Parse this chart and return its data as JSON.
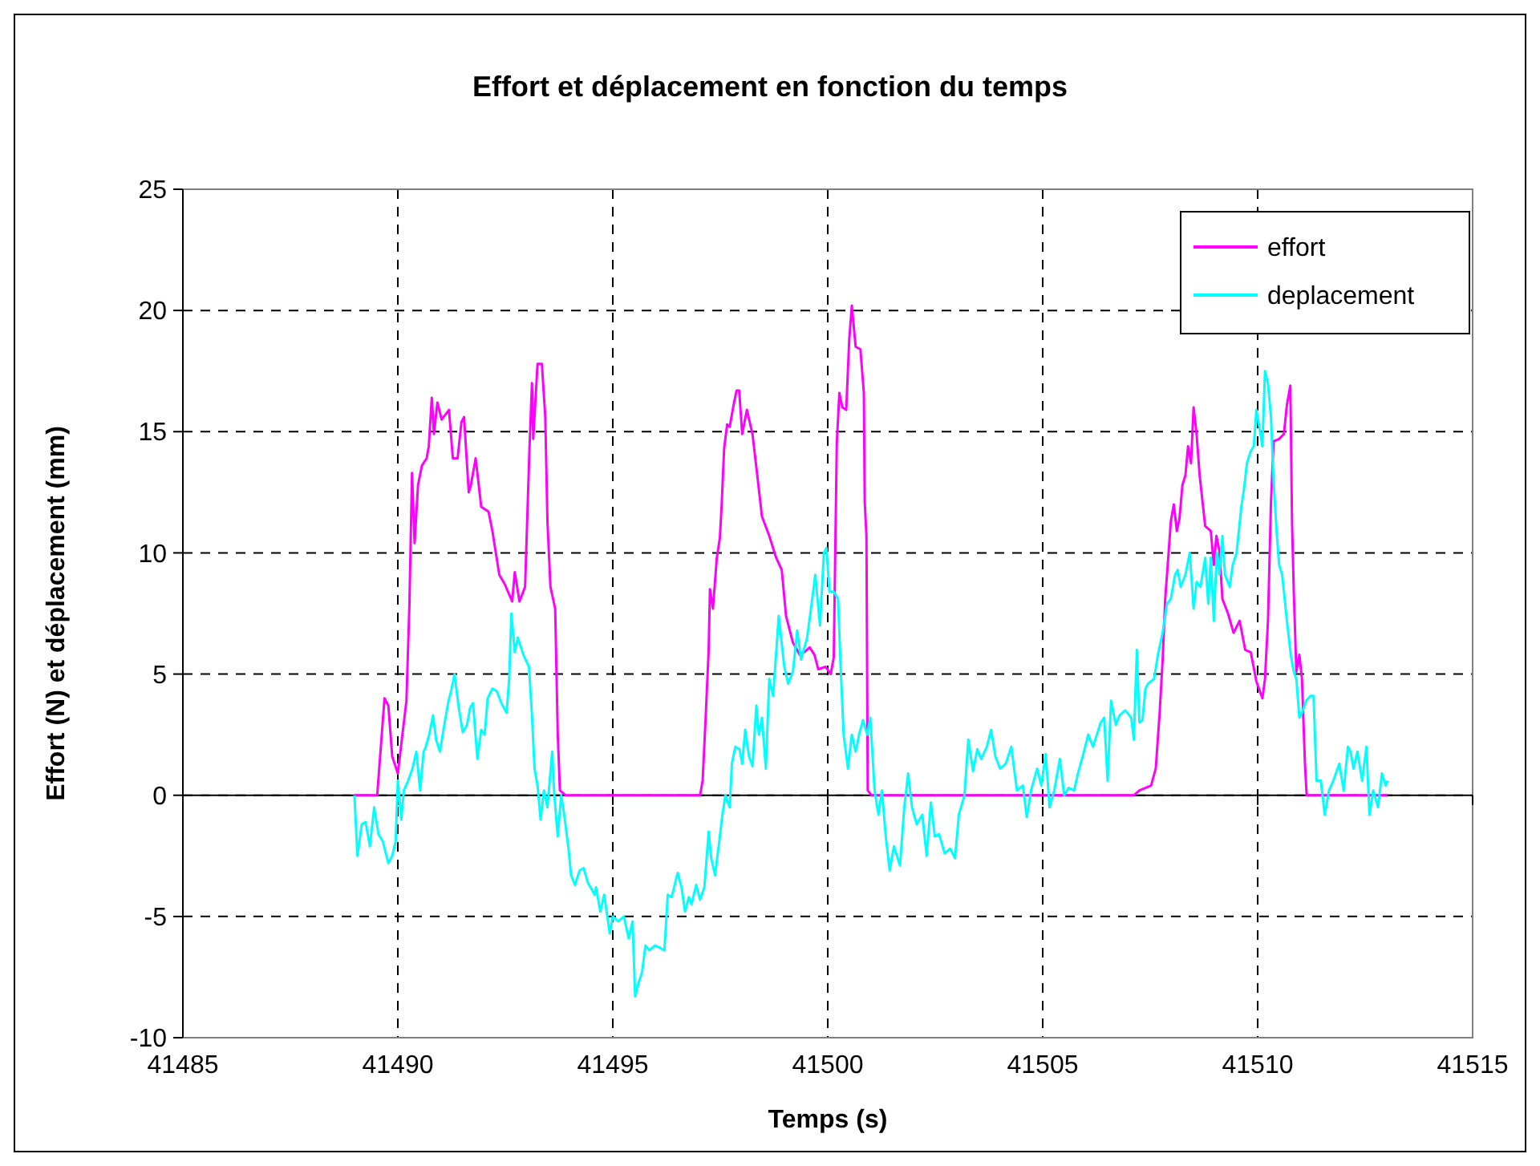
{
  "chart_data": {
    "type": "line",
    "title": "Effort et déplacement en fonction du temps",
    "xlabel": "Temps (s)",
    "ylabel": "Effort (N) et déplacement (mm)",
    "xlim": [
      41485,
      41515
    ],
    "xticks": [
      41485,
      41490,
      41495,
      41500,
      41505,
      41510,
      41515
    ],
    "ylim": [
      -10,
      25
    ],
    "yticks": [
      -10,
      -5,
      0,
      5,
      10,
      15,
      20,
      25
    ],
    "grid": true,
    "legend": "top right",
    "marker": "none",
    "line_style": "solid",
    "series": [
      {
        "name": "effort",
        "color": "#ff00ff",
        "x": [
          41488.99,
          41489.52,
          41489.69,
          41489.78,
          41489.87,
          41490.0,
          41490.2,
          41490.27,
          41490.33,
          41490.39,
          41490.47,
          41490.56,
          41490.67,
          41490.72,
          41490.79,
          41490.84,
          41490.92,
          41491.02,
          41491.19,
          41491.28,
          41491.39,
          41491.48,
          41491.54,
          41491.65,
          41491.7,
          41491.81,
          41491.94,
          41492.11,
          41492.2,
          41492.36,
          41492.49,
          41492.66,
          41492.72,
          41492.83,
          41492.96,
          41493.06,
          41493.12,
          41493.15,
          41493.25,
          41493.35,
          41493.43,
          41493.48,
          41493.55,
          41493.66,
          41493.72,
          41493.77,
          41493.9,
          41497.03,
          41497.09,
          41497.16,
          41497.23,
          41497.26,
          41497.33,
          41497.42,
          41497.49,
          41497.53,
          41497.59,
          41497.66,
          41497.72,
          41497.81,
          41497.88,
          41497.94,
          41498.01,
          41498.12,
          41498.25,
          41498.38,
          41498.47,
          41498.64,
          41498.8,
          41498.93,
          41499.03,
          41499.19,
          41499.35,
          41499.45,
          41499.58,
          41499.69,
          41499.78,
          41499.95,
          41500.07,
          41500.14,
          41500.21,
          41500.27,
          41500.34,
          41500.43,
          41500.5,
          41500.56,
          41500.65,
          41500.76,
          41500.84,
          41500.86,
          41500.9,
          41500.93,
          41501.02,
          41507.12,
          41507.25,
          41507.52,
          41507.63,
          41507.72,
          41507.79,
          41507.85,
          41507.92,
          41507.98,
          41508.05,
          41508.12,
          41508.18,
          41508.25,
          41508.32,
          41508.38,
          41508.45,
          41508.51,
          41508.58,
          41508.65,
          41508.78,
          41508.91,
          41508.98,
          41509.04,
          41509.11,
          41509.18,
          41509.31,
          41509.44,
          41509.58,
          41509.71,
          41509.84,
          41509.97,
          41510.11,
          41510.17,
          41510.24,
          41510.31,
          41510.37,
          41510.5,
          41510.61,
          41510.68,
          41510.76,
          41510.8,
          41510.84,
          41510.9,
          41510.97,
          41511.03,
          41511.1,
          41511.14,
          41513.02
        ],
        "values": [
          0,
          0,
          4.0,
          3.7,
          1.6,
          0.9,
          3.9,
          7.9,
          13.3,
          10.4,
          12.8,
          13.6,
          13.9,
          14.4,
          16.4,
          14.9,
          16.2,
          15.5,
          15.9,
          13.9,
          13.9,
          15.4,
          15.6,
          12.5,
          12.8,
          13.9,
          11.9,
          11.7,
          10.9,
          9.1,
          8.7,
          8.0,
          9.2,
          8.0,
          8.6,
          14.2,
          17.0,
          14.7,
          17.8,
          17.8,
          15.6,
          11.3,
          8.6,
          7.7,
          2.5,
          0.2,
          0,
          0,
          0.6,
          3.2,
          6.0,
          8.5,
          7.7,
          9.8,
          10.6,
          11.9,
          14.3,
          15.3,
          15.2,
          16.1,
          16.7,
          16.7,
          14.9,
          15.9,
          14.9,
          12.9,
          11.5,
          10.7,
          9.8,
          9.3,
          7.4,
          6.3,
          5.8,
          5.9,
          6.1,
          5.8,
          5.2,
          5.3,
          5.0,
          5.7,
          14.5,
          16.6,
          16.0,
          15.9,
          18.8,
          20.2,
          18.5,
          18.4,
          16.6,
          12.1,
          10.7,
          0.2,
          0,
          0,
          0.2,
          0.4,
          1.1,
          3.4,
          5.6,
          8.1,
          9.8,
          11.3,
          12.0,
          10.9,
          11.4,
          12.8,
          13.2,
          14.4,
          13.7,
          16.0,
          14.9,
          13.2,
          11.1,
          10.9,
          9.5,
          10.7,
          10.1,
          8.1,
          7.5,
          6.7,
          7.2,
          6.0,
          5.9,
          4.7,
          4.0,
          4.8,
          7.2,
          12.1,
          14.6,
          14.7,
          14.9,
          16.1,
          16.9,
          11.2,
          8.4,
          5.1,
          5.8,
          4.8,
          1.3,
          0,
          0
        ]
      },
      {
        "name": "deplacement",
        "color": "#00ffff",
        "x": [
          41488.99,
          41489.06,
          41489.16,
          41489.25,
          41489.35,
          41489.45,
          41489.55,
          41489.65,
          41489.78,
          41489.87,
          41489.95,
          41490.0,
          41490.08,
          41490.14,
          41490.24,
          41490.34,
          41490.43,
          41490.52,
          41490.6,
          41490.65,
          41490.73,
          41490.82,
          41490.89,
          41490.98,
          41491.09,
          41491.18,
          41491.24,
          41491.32,
          41491.41,
          41491.51,
          41491.61,
          41491.68,
          41491.75,
          41491.85,
          41491.94,
          41492.02,
          41492.09,
          41492.2,
          41492.3,
          41492.41,
          41492.53,
          41492.59,
          41492.64,
          41492.72,
          41492.79,
          41492.92,
          41493.05,
          41493.12,
          41493.18,
          41493.25,
          41493.32,
          41493.4,
          41493.48,
          41493.59,
          41493.64,
          41493.72,
          41493.8,
          41493.87,
          41493.97,
          41494.03,
          41494.12,
          41494.23,
          41494.32,
          41494.42,
          41494.58,
          41494.61,
          41494.71,
          41494.8,
          41494.93,
          41495.0,
          41495.13,
          41495.26,
          41495.37,
          41495.46,
          41495.52,
          41495.59,
          41495.68,
          41495.76,
          41495.85,
          41495.98,
          41496.11,
          41496.2,
          41496.28,
          41496.37,
          41496.51,
          41496.6,
          41496.68,
          41496.77,
          41496.83,
          41496.94,
          41497.03,
          41497.13,
          41497.23,
          41497.29,
          41497.38,
          41497.49,
          41497.55,
          41497.62,
          41497.72,
          41497.77,
          41497.85,
          41497.95,
          41498.01,
          41498.08,
          41498.17,
          41498.25,
          41498.34,
          41498.4,
          41498.47,
          41498.56,
          41498.64,
          41498.73,
          41498.86,
          41498.99,
          41499.08,
          41499.19,
          41499.29,
          41499.38,
          41499.52,
          41499.61,
          41499.71,
          41499.82,
          41499.91,
          41499.97,
          41500.04,
          41500.14,
          41500.24,
          41500.3,
          41500.37,
          41500.47,
          41500.56,
          41500.65,
          41500.73,
          41500.82,
          41500.92,
          41500.99,
          41501.09,
          41501.18,
          41501.26,
          41501.35,
          41501.44,
          41501.54,
          41501.68,
          41501.78,
          41501.87,
          41501.96,
          41502.07,
          41502.2,
          41502.3,
          41502.4,
          41502.49,
          41502.59,
          41502.72,
          41502.85,
          41502.96,
          41503.05,
          41503.18,
          41503.27,
          41503.38,
          41503.48,
          41503.57,
          41503.7,
          41503.8,
          41503.9,
          41504.01,
          41504.14,
          41504.27,
          41504.4,
          41504.54,
          41504.63,
          41504.73,
          41504.87,
          41504.97,
          41505.07,
          41505.16,
          41505.27,
          41505.4,
          41505.5,
          41505.6,
          41505.73,
          41505.82,
          41505.93,
          41506.06,
          41506.17,
          41506.26,
          41506.35,
          41506.43,
          41506.51,
          41506.59,
          41506.7,
          41506.79,
          41506.92,
          41507.06,
          41507.12,
          41507.19,
          41507.25,
          41507.32,
          41507.39,
          41507.45,
          41507.59,
          41507.68,
          41507.79,
          41507.89,
          41507.98,
          41508.08,
          41508.14,
          41508.21,
          41508.32,
          41508.42,
          41508.51,
          41508.58,
          41508.67,
          41508.78,
          41508.85,
          41508.91,
          41508.98,
          41509.05,
          41509.11,
          41509.18,
          41509.24,
          41509.35,
          41509.42,
          41509.51,
          41509.62,
          41509.68,
          41509.75,
          41509.84,
          41509.91,
          41509.97,
          41510.04,
          41510.11,
          41510.17,
          41510.24,
          41510.31,
          41510.37,
          41510.44,
          41510.5,
          41510.57,
          41510.68,
          41510.77,
          41510.84,
          41510.9,
          41510.97,
          41511.03,
          41511.13,
          41511.23,
          41511.3,
          41511.37,
          41511.47,
          41511.56,
          41511.66,
          41511.76,
          41511.9,
          41512.0,
          41512.1,
          41512.16,
          41512.23,
          41512.32,
          41512.43,
          41512.53,
          41512.6,
          41512.69,
          41512.8,
          41512.89,
          41512.98,
          41513.02
        ],
        "values": [
          0,
          -2.5,
          -1.2,
          -1.1,
          -2.1,
          -0.5,
          -1.6,
          -1.9,
          -2.8,
          -2.5,
          -1.9,
          0.6,
          -1.0,
          0.2,
          0.6,
          1.1,
          1.8,
          0.2,
          1.8,
          2.0,
          2.5,
          3.3,
          2.3,
          1.8,
          3.0,
          3.9,
          4.3,
          5.0,
          3.7,
          2.6,
          2.9,
          3.6,
          3.8,
          1.5,
          2.7,
          2.5,
          4.0,
          4.4,
          4.3,
          3.8,
          3.4,
          4.8,
          7.5,
          5.9,
          6.5,
          5.8,
          5.3,
          3.3,
          1.1,
          0.4,
          -1.0,
          0.2,
          -0.5,
          1.8,
          0,
          -1.7,
          0,
          -0.8,
          -2.2,
          -3.3,
          -3.7,
          -3.1,
          -3.0,
          -3.6,
          -4.1,
          -3.8,
          -4.8,
          -4.1,
          -5.7,
          -5.0,
          -5.2,
          -5.0,
          -5.9,
          -5.2,
          -8.3,
          -7.8,
          -7.3,
          -6.2,
          -6.4,
          -6.2,
          -6.3,
          -6.4,
          -4.1,
          -4.2,
          -3.2,
          -3.8,
          -4.8,
          -4.2,
          -4.5,
          -3.7,
          -4.3,
          -3.8,
          -1.5,
          -2.6,
          -3.3,
          -1.7,
          -0.8,
          0,
          -0.5,
          1.3,
          2.0,
          1.9,
          1.3,
          2.7,
          1.6,
          1.2,
          3.7,
          2.5,
          3.2,
          1.1,
          4.8,
          4.1,
          7.4,
          5.3,
          4.6,
          5.1,
          6.8,
          5.6,
          6.5,
          7.7,
          9.1,
          7.0,
          10.0,
          10.2,
          8.4,
          8.4,
          8.1,
          5.3,
          2.5,
          1.1,
          2.5,
          1.8,
          2.5,
          3.1,
          2.5,
          3.2,
          0.2,
          -0.8,
          0.2,
          -1.7,
          -3.1,
          -2.1,
          -2.9,
          -0.5,
          0.9,
          -0.5,
          -1.2,
          -0.8,
          -2.5,
          -0.3,
          -1.7,
          -1.6,
          -2.4,
          -2.2,
          -2.6,
          -0.8,
          0,
          2.3,
          1.0,
          1.9,
          1.5,
          2.0,
          2.7,
          1.6,
          1.1,
          1.3,
          2.0,
          0.2,
          0.4,
          -0.9,
          0.2,
          1.1,
          0.4,
          1.7,
          -0.5,
          0.2,
          1.5,
          0,
          0.3,
          0.2,
          0.9,
          1.6,
          2.5,
          2.0,
          2.5,
          3.0,
          3.2,
          0.6,
          3.9,
          2.9,
          3.3,
          3.5,
          3.2,
          2.3,
          6.0,
          3.0,
          3.1,
          4.4,
          4.6,
          4.8,
          5.8,
          6.7,
          7.9,
          8.1,
          9.1,
          9.3,
          8.6,
          9.1,
          10.0,
          7.7,
          8.8,
          8.6,
          9.8,
          7.9,
          9.8,
          7.2,
          10.0,
          9.1,
          10.7,
          9.1,
          8.6,
          9.5,
          10.0,
          11.9,
          12.6,
          13.7,
          14.2,
          14.4,
          15.9,
          15.2,
          14.4,
          17.5,
          17.0,
          15.6,
          13.0,
          10.9,
          9.5,
          9.1,
          7.2,
          5.8,
          5.1,
          4.8,
          3.2,
          3.4,
          3.9,
          4.1,
          4.1,
          0.6,
          0.6,
          -0.8,
          0.2,
          0.6,
          1.3,
          0.2,
          2.0,
          1.8,
          1.1,
          1.8,
          0.6,
          2.0,
          -0.8,
          0.2,
          -0.5,
          0.9,
          0.4,
          0.6
        ]
      }
    ]
  }
}
